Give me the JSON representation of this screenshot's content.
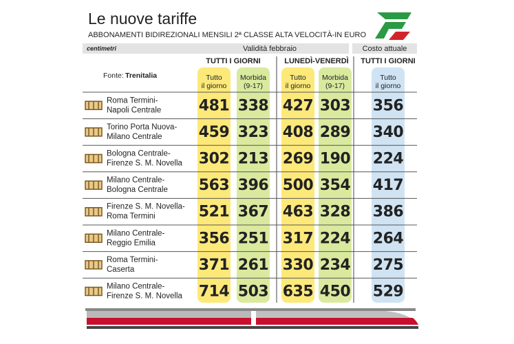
{
  "title": "Le nuove tariffe",
  "subtitle": "ABBONAMENTI BIDIREZIONALI MENSILI 2ª CLASSE ALTA VELOCITÀ-IN EURO",
  "brand": "centimetri",
  "header": {
    "validity": "Validità febbraio",
    "current": "Costo attuale"
  },
  "groups": [
    "TUTTI I GIORNI",
    "LUNEDÌ-VENERDÌ",
    "TUTTI I GIORNI"
  ],
  "source": {
    "label": "Fonte:",
    "name": "Trenitalia"
  },
  "columns": [
    [
      "Tutto",
      "il giorno"
    ],
    [
      "Morbida",
      "(9-17)"
    ],
    [
      "Tutto",
      "il giorno"
    ],
    [
      "Morbida",
      "(9-17)"
    ],
    [
      "Tutto",
      "il giorno"
    ]
  ],
  "rows": [
    {
      "route": [
        "Roma Termini-",
        "Napoli Centrale"
      ],
      "values": [
        481,
        338,
        427,
        303,
        356
      ]
    },
    {
      "route": [
        "Torino Porta Nuova-",
        "Milano Centrale"
      ],
      "values": [
        459,
        323,
        408,
        289,
        340
      ]
    },
    {
      "route": [
        "Bologna Centrale-",
        "Firenze S. M. Novella"
      ],
      "values": [
        302,
        213,
        269,
        190,
        224
      ]
    },
    {
      "route": [
        "Milano Centrale-",
        "Bologna Centrale"
      ],
      "values": [
        563,
        396,
        500,
        354,
        417
      ]
    },
    {
      "route": [
        "Firenze S. M. Novella-",
        "Roma Termini"
      ],
      "values": [
        521,
        367,
        463,
        328,
        386
      ]
    },
    {
      "route": [
        "Milano Centrale-",
        "Reggio Emilia"
      ],
      "values": [
        356,
        251,
        317,
        224,
        264
      ]
    },
    {
      "route": [
        "Roma Termini-",
        "Caserta"
      ],
      "values": [
        371,
        261,
        330,
        234,
        275
      ]
    },
    {
      "route": [
        "Milano Centrale-",
        "Firenze S. M. Novella"
      ],
      "values": [
        714,
        503,
        635,
        450,
        529
      ]
    }
  ]
}
